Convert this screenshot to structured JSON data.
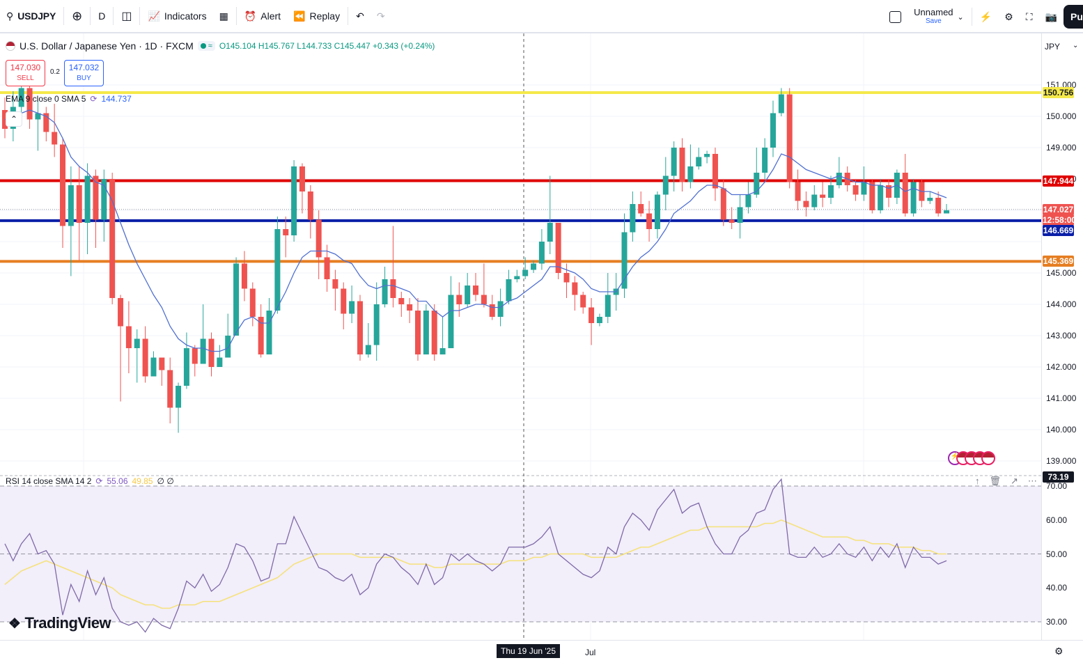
{
  "toolbar": {
    "symbol": "USDJPY",
    "interval": "D",
    "indicators_label": "Indicators",
    "alert_label": "Alert",
    "replay_label": "Replay",
    "layout_name": "Unnamed",
    "save_label": "Save",
    "publish_label": "Pu"
  },
  "legend": {
    "title": "U.S. Dollar / Japanese Yen · 1D · FXCM",
    "ohlc": "O145.104 H145.767 L144.733 C145.447 +0.343 (+0.24%)"
  },
  "trade": {
    "sell_price": "147.030",
    "sell_label": "SELL",
    "spread": "0.2",
    "buy_price": "147.032",
    "buy_label": "BUY"
  },
  "indicator": {
    "name": "EMA 9 close 0 SMA 5",
    "value": "144.737"
  },
  "rsi": {
    "name": "RSI 14 close SMA 14 2",
    "value": "55.06",
    "sma_value": "49.85",
    "extra": "∅ ∅"
  },
  "price_scale": {
    "currency": "JPY",
    "ticks": [
      "151.000",
      "150.000",
      "149.000",
      "148.000",
      "145.000",
      "144.000",
      "143.000",
      "142.000",
      "141.000",
      "140.000",
      "139.000"
    ],
    "rsi_ticks": [
      "70.00",
      "60.00",
      "50.00",
      "40.00",
      "30.00"
    ],
    "labels": {
      "yellow": "150.756",
      "red": "147.944",
      "last": "147.027",
      "countdown": "12:58:00",
      "blue": "146.669",
      "orange": "145.369",
      "rsi": "73.19"
    }
  },
  "time_axis": {
    "crosshair_date": "Thu 19 Jun '25",
    "month": "Jul"
  },
  "branding": "TradingView",
  "colors": {
    "up": "#26a69a",
    "down": "#ef5350",
    "yellow_line": "#f5e94a",
    "red_line": "#e00000",
    "blue_line": "#0a1fa8",
    "orange_line": "#e67e22",
    "ema": "#4f6fd1",
    "rsi": "#7e6aa8",
    "rsi_sma": "#f6e27a"
  },
  "chart_data": {
    "type": "candlestick",
    "symbol": "USDJPY",
    "ylim": [
      139.0,
      151.4
    ],
    "horizontal_lines": [
      150.756,
      147.944,
      146.669,
      145.369
    ],
    "candles": [
      [
        150.2,
        149.6,
        150.6,
        149.3
      ],
      [
        149.6,
        150.3,
        150.8,
        149.2
      ],
      [
        150.3,
        150.9,
        151.2,
        150.0
      ],
      [
        150.9,
        149.9,
        151.1,
        149.6
      ],
      [
        149.9,
        150.1,
        150.5,
        148.9
      ],
      [
        150.1,
        149.5,
        150.3,
        149.2
      ],
      [
        149.5,
        149.1,
        150.4,
        148.7
      ],
      [
        149.1,
        146.5,
        149.3,
        145.8
      ],
      [
        146.5,
        147.8,
        148.4,
        144.9
      ],
      [
        147.8,
        146.6,
        148.4,
        145.4
      ],
      [
        146.6,
        148.1,
        148.5,
        145.6
      ],
      [
        148.1,
        146.7,
        148.3,
        145.8
      ],
      [
        146.7,
        148.0,
        148.3,
        146.0
      ],
      [
        148.0,
        144.2,
        148.2,
        144.0
      ],
      [
        144.2,
        143.3,
        144.3,
        140.9
      ],
      [
        143.3,
        142.6,
        144.1,
        141.8
      ],
      [
        142.6,
        142.9,
        143.2,
        141.5
      ],
      [
        142.9,
        141.7,
        143.3,
        141.5
      ],
      [
        141.7,
        142.3,
        142.5,
        141.9
      ],
      [
        142.3,
        141.9,
        142.1,
        141.4
      ],
      [
        141.9,
        140.7,
        142.3,
        140.2
      ],
      [
        140.7,
        141.4,
        141.5,
        139.9
      ],
      [
        141.4,
        142.6,
        143.1,
        141.3
      ],
      [
        142.6,
        142.1,
        142.7,
        141.7
      ],
      [
        142.1,
        142.9,
        144.0,
        142.1
      ],
      [
        142.9,
        142.0,
        143.1,
        141.7
      ],
      [
        142.0,
        142.3,
        142.7,
        142.0
      ],
      [
        142.3,
        143.0,
        143.7,
        142.3
      ],
      [
        143.0,
        145.3,
        145.5,
        143.2
      ],
      [
        145.3,
        144.5,
        145.7,
        144.1
      ],
      [
        144.5,
        143.6,
        144.7,
        143.3
      ],
      [
        143.6,
        142.4,
        144.0,
        142.3
      ],
      [
        142.4,
        143.8,
        144.2,
        142.4
      ],
      [
        143.8,
        146.4,
        146.8,
        143.7
      ],
      [
        146.4,
        146.2,
        146.8,
        145.5
      ],
      [
        146.2,
        148.4,
        148.6,
        146.0
      ],
      [
        148.4,
        147.6,
        148.5,
        146.9
      ],
      [
        147.6,
        146.7,
        147.8,
        146.1
      ],
      [
        146.7,
        145.5,
        147.0,
        144.8
      ],
      [
        145.5,
        144.8,
        145.9,
        144.4
      ],
      [
        144.8,
        144.5,
        145.1,
        143.8
      ],
      [
        144.5,
        143.7,
        144.7,
        143.2
      ],
      [
        143.7,
        144.1,
        144.6,
        143.4
      ],
      [
        144.1,
        142.4,
        144.3,
        142.2
      ],
      [
        142.4,
        142.7,
        143.4,
        142.3
      ],
      [
        142.7,
        144.0,
        144.7,
        142.2
      ],
      [
        144.0,
        144.8,
        145.2,
        143.9
      ],
      [
        144.8,
        144.2,
        146.5,
        143.9
      ],
      [
        144.2,
        144.0,
        144.4,
        143.6
      ],
      [
        144.0,
        143.8,
        144.2,
        143.4
      ],
      [
        143.8,
        142.4,
        144.2,
        142.2
      ],
      [
        142.4,
        143.8,
        144.0,
        142.4
      ],
      [
        143.8,
        142.4,
        144.0,
        142.2
      ],
      [
        142.4,
        142.6,
        143.6,
        142.4
      ],
      [
        142.6,
        144.3,
        144.9,
        142.8
      ],
      [
        144.3,
        144.0,
        144.7,
        143.6
      ],
      [
        144.0,
        144.6,
        145.0,
        143.9
      ],
      [
        144.6,
        144.3,
        145.0,
        144.1
      ],
      [
        144.3,
        144.0,
        145.3,
        143.9
      ],
      [
        144.0,
        143.6,
        144.3,
        143.5
      ],
      [
        143.6,
        144.1,
        144.5,
        143.3
      ],
      [
        144.1,
        144.8,
        145.1,
        144.0
      ],
      [
        144.8,
        144.9,
        145.1,
        144.7
      ],
      [
        144.9,
        145.1,
        145.5,
        144.8
      ],
      [
        145.1,
        145.3,
        145.4,
        145.0
      ],
      [
        145.3,
        146.0,
        146.4,
        145.1
      ],
      [
        146.0,
        146.6,
        148.1,
        145.6
      ],
      [
        146.6,
        145.0,
        146.6,
        144.8
      ],
      [
        145.0,
        144.7,
        145.3,
        144.2
      ],
      [
        144.7,
        144.3,
        144.9,
        143.8
      ],
      [
        144.3,
        143.9,
        144.4,
        143.7
      ],
      [
        143.9,
        143.4,
        144.2,
        142.7
      ],
      [
        143.4,
        143.6,
        143.7,
        143.3
      ],
      [
        143.6,
        144.3,
        145.0,
        143.4
      ],
      [
        144.3,
        144.5,
        145.0,
        143.8
      ],
      [
        144.5,
        146.3,
        146.9,
        144.2
      ],
      [
        146.3,
        147.2,
        147.6,
        146.0
      ],
      [
        147.2,
        146.9,
        147.6,
        146.8
      ],
      [
        146.9,
        146.4,
        147.3,
        146.0
      ],
      [
        146.4,
        147.5,
        147.6,
        146.1
      ],
      [
        147.5,
        148.1,
        148.7,
        147.0
      ],
      [
        148.1,
        149.0,
        149.2,
        147.6
      ],
      [
        149.0,
        147.9,
        149.3,
        147.6
      ],
      [
        147.9,
        148.4,
        149.1,
        147.7
      ],
      [
        148.4,
        148.7,
        149.0,
        148.3
      ],
      [
        148.7,
        148.8,
        148.9,
        148.5
      ],
      [
        148.8,
        147.7,
        149.0,
        147.3
      ],
      [
        147.7,
        146.7,
        148.0,
        146.5
      ],
      [
        146.7,
        146.6,
        147.1,
        146.4
      ],
      [
        146.6,
        147.1,
        147.5,
        146.1
      ],
      [
        147.1,
        147.5,
        147.9,
        146.9
      ],
      [
        147.5,
        148.2,
        149.0,
        147.4
      ],
      [
        148.2,
        149.0,
        149.3,
        148.0
      ],
      [
        149.0,
        150.1,
        150.5,
        148.7
      ],
      [
        150.1,
        150.7,
        150.9,
        150.0
      ],
      [
        150.7,
        147.9,
        150.9,
        147.7
      ],
      [
        147.9,
        147.3,
        148.3,
        147.0
      ],
      [
        147.3,
        147.1,
        147.6,
        146.8
      ],
      [
        147.1,
        147.5,
        147.8,
        147.0
      ],
      [
        147.5,
        147.4,
        147.9,
        147.1
      ],
      [
        147.4,
        147.8,
        148.1,
        147.2
      ],
      [
        147.8,
        148.2,
        148.7,
        147.7
      ],
      [
        148.2,
        147.8,
        148.4,
        147.6
      ],
      [
        147.8,
        147.5,
        148.0,
        147.3
      ],
      [
        147.5,
        147.9,
        148.4,
        147.3
      ],
      [
        147.9,
        147.0,
        148.0,
        146.9
      ],
      [
        147.0,
        147.8,
        148.0,
        146.9
      ],
      [
        147.8,
        147.4,
        148.0,
        147.1
      ],
      [
        147.4,
        148.2,
        148.3,
        147.2
      ],
      [
        148.2,
        146.9,
        148.8,
        146.8
      ],
      [
        146.9,
        147.9,
        148.0,
        146.8
      ],
      [
        147.9,
        147.3,
        148.0,
        147.1
      ],
      [
        147.3,
        147.4,
        147.6,
        147.2
      ],
      [
        147.4,
        146.9,
        147.6,
        146.8
      ],
      [
        146.9,
        147.0,
        147.2,
        146.9
      ]
    ],
    "ema": [
      149.9,
      149.9,
      150.1,
      150.2,
      150.1,
      150.0,
      149.8,
      149.3,
      148.7,
      148.4,
      148.2,
      147.9,
      147.8,
      147.3,
      146.6,
      145.9,
      145.3,
      144.8,
      144.3,
      143.9,
      143.3,
      142.9,
      142.7,
      142.6,
      142.6,
      142.5,
      142.5,
      142.6,
      143.1,
      143.5,
      143.6,
      143.4,
      143.4,
      143.9,
      144.4,
      145.0,
      145.5,
      145.7,
      145.7,
      145.7,
      145.6,
      145.4,
      145.3,
      144.9,
      144.6,
      144.5,
      144.6,
      144.6,
      144.5,
      144.4,
      144.1,
      144.1,
      143.8,
      143.6,
      143.8,
      143.8,
      143.9,
      144.0,
      144.0,
      143.9,
      143.9,
      144.1,
      144.2,
      144.4,
      144.6,
      144.8,
      145.2,
      145.2,
      145.1,
      145.0,
      144.8,
      144.5,
      144.4,
      144.4,
      144.4,
      144.8,
      145.2,
      145.5,
      145.7,
      146.0,
      146.4,
      146.9,
      147.1,
      147.3,
      147.6,
      147.8,
      147.8,
      147.7,
      147.5,
      147.5,
      147.5,
      147.6,
      147.9,
      148.3,
      148.8,
      148.7,
      148.5,
      148.3,
      148.2,
      148.1,
      148.0,
      148.1,
      148.0,
      147.9,
      147.9,
      147.8,
      147.8,
      147.7,
      147.8,
      147.6,
      147.7,
      147.6,
      147.6,
      147.5,
      147.4
    ],
    "rsi": [
      53,
      48,
      53,
      56,
      50,
      51,
      47,
      32,
      41,
      36,
      45,
      38,
      43,
      34,
      30,
      29,
      30,
      27,
      31,
      29,
      28,
      34,
      42,
      40,
      44,
      39,
      41,
      46,
      53,
      52,
      48,
      42,
      43,
      53,
      53,
      61,
      56,
      51,
      46,
      45,
      43,
      42,
      44,
      38,
      40,
      47,
      50,
      49,
      46,
      44,
      41,
      47,
      41,
      43,
      50,
      48,
      50,
      48,
      47,
      45,
      47,
      52,
      52,
      52,
      53,
      55,
      58,
      50,
      48,
      46,
      44,
      43,
      45,
      52,
      50,
      58,
      62,
      60,
      57,
      63,
      66,
      69,
      62,
      64,
      65,
      58,
      53,
      50,
      50,
      55,
      57,
      62,
      63,
      69,
      72,
      50,
      49,
      49,
      52,
      49,
      50,
      53,
      50,
      49,
      52,
      48,
      52,
      49,
      53,
      46,
      52,
      49,
      49,
      47,
      48
    ],
    "rsi_sma": [
      41,
      43,
      45,
      46,
      47,
      48,
      47,
      46,
      45,
      44,
      43,
      42,
      41,
      40,
      38,
      37,
      36,
      35,
      35,
      34,
      34,
      35,
      35,
      35,
      36,
      36,
      36,
      37,
      38,
      39,
      40,
      41,
      42,
      43,
      45,
      47,
      48,
      49,
      50,
      50,
      50,
      50,
      50,
      49,
      49,
      49,
      49,
      49,
      48,
      47,
      47,
      47,
      46,
      46,
      47,
      47,
      47,
      47,
      47,
      47,
      47,
      48,
      48,
      48,
      49,
      49,
      50,
      50,
      50,
      50,
      50,
      49,
      49,
      49,
      49,
      50,
      51,
      52,
      52,
      53,
      54,
      55,
      56,
      57,
      57,
      58,
      58,
      58,
      58,
      58,
      58,
      58,
      59,
      59,
      60,
      59,
      58,
      57,
      56,
      55,
      55,
      55,
      55,
      54,
      54,
      53,
      53,
      53,
      52,
      52,
      52,
      51,
      51,
      50,
      50
    ],
    "rsi_ylim": [
      28,
      74
    ],
    "rsi_levels": [
      70,
      50,
      30
    ]
  }
}
